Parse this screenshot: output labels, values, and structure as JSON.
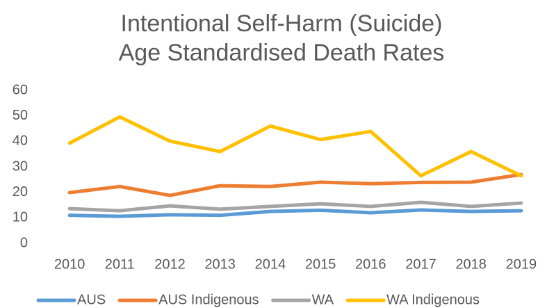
{
  "chart_data": {
    "type": "line",
    "title": [
      "Intentional Self-Harm (Suicide)",
      "Age Standardised Death Rates"
    ],
    "categories": [
      "2010",
      "2011",
      "2012",
      "2013",
      "2014",
      "2015",
      "2016",
      "2017",
      "2018",
      "2019"
    ],
    "series": [
      {
        "name": "AUS",
        "color": "#5b9bd5",
        "values": [
          11,
          10.6,
          11.2,
          11,
          12.5,
          13,
          12,
          13.1,
          12.5,
          12.8
        ]
      },
      {
        "name": "AUS Indigenous",
        "color": "#ed7d31",
        "values": [
          19.9,
          22.3,
          18.8,
          22.6,
          22.3,
          24,
          23.4,
          23.9,
          24,
          27
        ]
      },
      {
        "name": "WA",
        "color": "#a5a5a5",
        "values": [
          13.6,
          12.8,
          14.7,
          13.4,
          14.5,
          15.5,
          14.5,
          16.1,
          14.5,
          15.8
        ]
      },
      {
        "name": "WA Indigenous",
        "color": "#ffc000",
        "values": [
          39.3,
          49.6,
          40.1,
          36,
          46,
          40.7,
          43.9,
          26.5,
          36,
          26.5
        ]
      }
    ],
    "ylim": [
      0,
      60
    ],
    "yticks": [
      0,
      10,
      20,
      30,
      40,
      50,
      60
    ],
    "grid": false,
    "legend": "bottom"
  }
}
